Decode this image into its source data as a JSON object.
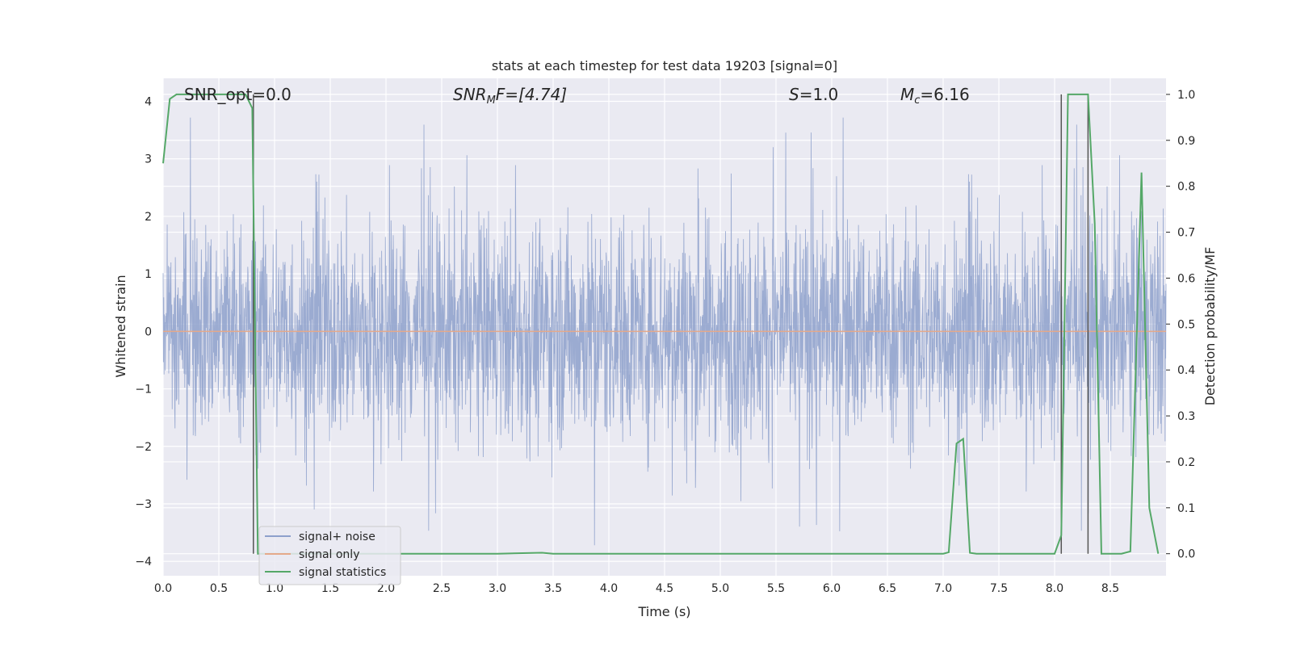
{
  "chart_data": {
    "type": "line",
    "title": "stats at each timestep for test data 19203 [signal=0]",
    "xlabel": "Time (s)",
    "ylabel": "Whitened strain",
    "ylabel_right": "Detection probability/MF",
    "xlim": [
      0.0,
      9.0
    ],
    "ylim": [
      -4.25,
      4.4
    ],
    "ylim_right": [
      -0.048,
      1.035
    ],
    "x_ticks": [
      "0.0",
      "0.5",
      "1.0",
      "1.5",
      "2.0",
      "2.5",
      "3.0",
      "3.5",
      "4.0",
      "4.5",
      "5.0",
      "5.5",
      "6.0",
      "6.5",
      "7.0",
      "7.5",
      "8.0",
      "8.5"
    ],
    "y_ticks": [
      "4",
      "3",
      "2",
      "1",
      "0",
      "−1",
      "−2",
      "−3",
      "−4"
    ],
    "y_ticks_right": [
      "1.0",
      "0.9",
      "0.8",
      "0.7",
      "0.6",
      "0.5",
      "0.4",
      "0.3",
      "0.2",
      "0.1",
      "0.0"
    ],
    "grid": true,
    "legend_position": "lower-left",
    "annotations": {
      "snr_opt": "SNR_opt=0.0",
      "snr_mf_base": "SNR",
      "snr_mf_sub": "M",
      "snr_mf_rest": "F=[4.74]",
      "s_label": "S",
      "s_rest": "=1.0",
      "mc_label": "M",
      "mc_sub": "c",
      "mc_rest": "=6.16"
    },
    "vertical_lines": [
      0.81,
      8.06,
      8.3
    ],
    "series": [
      {
        "name": "signal+ noise",
        "color": "#8da0cb",
        "note": "noise amplitude ~N(0,1), spikes between about -3.9 and 3.8"
      },
      {
        "name": "signal only",
        "color": "#e5a98a",
        "constant": 0.0
      },
      {
        "name": "signal statistics",
        "color": "#55a868",
        "x": [
          0.0,
          0.06,
          0.12,
          0.2,
          0.4,
          0.6,
          0.74,
          0.8,
          0.85,
          0.9,
          1.0,
          2.0,
          3.0,
          3.4,
          3.5,
          4.0,
          5.0,
          6.0,
          7.0,
          7.05,
          7.12,
          7.18,
          7.24,
          7.3,
          7.5,
          8.0,
          8.06,
          8.12,
          8.18,
          8.25,
          8.3,
          8.36,
          8.42,
          8.5,
          8.6,
          8.68,
          8.78,
          8.85,
          8.93
        ],
        "values": [
          0.85,
          0.99,
          1.0,
          1.0,
          1.0,
          1.0,
          1.0,
          0.97,
          0.0,
          0.0,
          0.0,
          0.0,
          0.0,
          0.002,
          0.0,
          0.0,
          0.0,
          0.0,
          0.0,
          0.003,
          0.24,
          0.25,
          0.002,
          0.0,
          0.0,
          0.0,
          0.04,
          1.0,
          1.0,
          1.0,
          1.0,
          0.72,
          0.0,
          0.0,
          0.0,
          0.005,
          0.83,
          0.1,
          0.0
        ]
      }
    ]
  }
}
